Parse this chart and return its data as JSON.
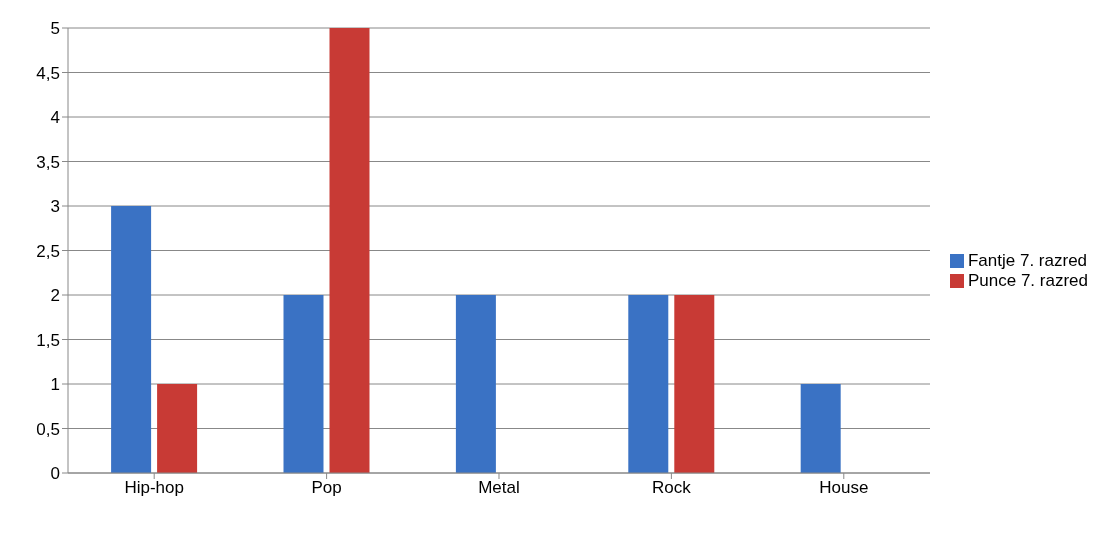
{
  "chart_data": {
    "type": "bar",
    "categories": [
      "Hip-hop",
      "Pop",
      "Metal",
      "Rock",
      "House"
    ],
    "series": [
      {
        "name": "Fantje 7. razred",
        "color": "#3a72c4",
        "values": [
          3,
          2,
          2,
          2,
          1
        ]
      },
      {
        "name": "Punce 7. razred",
        "color": "#c83a35",
        "values": [
          1,
          5,
          0,
          2,
          0
        ]
      }
    ],
    "ylim": [
      0,
      5
    ],
    "yticks": [
      0,
      {
        "value": 0.5,
        "label": "0,5"
      },
      1,
      {
        "value": 1.5,
        "label": "1,5"
      },
      2,
      {
        "value": 2.5,
        "label": "2,5"
      },
      3,
      {
        "value": 3.5,
        "label": "3,5"
      },
      4,
      {
        "value": 4.5,
        "label": "4,5"
      },
      5
    ],
    "grid": "y",
    "legend": "right"
  }
}
